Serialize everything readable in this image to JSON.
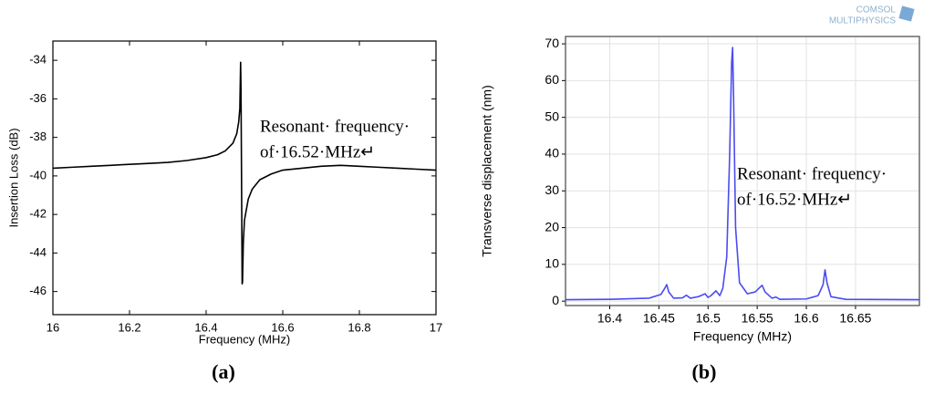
{
  "chart_data": [
    {
      "type": "line",
      "caption": "(a)",
      "x_label": "Frequency (MHz)",
      "y_label": "Insertion Loss (dB)",
      "annotation": [
        "Resonant· frequency·",
        "of·16.52·MHz↵"
      ],
      "x": [
        16,
        16.05,
        16.1,
        16.15,
        16.2,
        16.25,
        16.3,
        16.35,
        16.4,
        16.43,
        16.45,
        16.47,
        16.48,
        16.485,
        16.488,
        16.49,
        16.491,
        16.493,
        16.494,
        16.495,
        16.497,
        16.5,
        16.51,
        16.52,
        16.54,
        16.57,
        16.6,
        16.65,
        16.7,
        16.75,
        16.8,
        16.85,
        16.9,
        16.95,
        17
      ],
      "values": [
        -39.6,
        -39.55,
        -39.5,
        -39.45,
        -39.4,
        -39.35,
        -39.3,
        -39.2,
        -39.05,
        -38.9,
        -38.7,
        -38.3,
        -37.8,
        -37.2,
        -36.5,
        -34.1,
        -35.5,
        -42,
        -45.6,
        -45.5,
        -43.5,
        -42.3,
        -41.2,
        -40.7,
        -40.2,
        -39.9,
        -39.7,
        -39.6,
        -39.5,
        -39.45,
        -39.5,
        -39.55,
        -39.6,
        -39.65,
        -39.7
      ],
      "color": "#000000",
      "xlim": [
        16,
        17
      ],
      "xticks": [
        16,
        16.2,
        16.4,
        16.6,
        16.8,
        17
      ],
      "ylim": [
        -47.2,
        -33
      ],
      "yticks": [
        -34,
        -36,
        -38,
        -40,
        -42,
        -44,
        -46
      ],
      "grid": false
    },
    {
      "type": "line",
      "caption": "(b)",
      "x_label": "Frequency (MHz)",
      "y_label": "Transverse displacement (nm)",
      "annotation": [
        "Resonant· frequency·",
        "of·16.52·MHz↵"
      ],
      "x": [
        16.355,
        16.4,
        16.44,
        16.452,
        16.456,
        16.458,
        16.46,
        16.465,
        16.474,
        16.478,
        16.482,
        16.49,
        16.497,
        16.5,
        16.503,
        16.508,
        16.512,
        16.515,
        16.519,
        16.522,
        16.524,
        16.525,
        16.526,
        16.528,
        16.532,
        16.54,
        16.548,
        16.553,
        16.555,
        16.558,
        16.565,
        16.569,
        16.573,
        16.6,
        16.612,
        16.617,
        16.619,
        16.621,
        16.625,
        16.64,
        16.715
      ],
      "values": [
        0.4,
        0.5,
        0.8,
        1.8,
        3.5,
        4.5,
        2.5,
        0.8,
        0.9,
        1.6,
        0.8,
        1.2,
        2.0,
        1.0,
        1.5,
        2.8,
        1.5,
        3.5,
        12,
        40,
        65,
        69,
        55,
        20,
        5,
        2,
        2.5,
        3.8,
        4.3,
        2.5,
        0.8,
        1.1,
        0.5,
        0.6,
        1.5,
        4.5,
        8.5,
        5,
        1.2,
        0.5,
        0.4
      ],
      "color": "#4b4bf2",
      "xlim": [
        16.355,
        16.715
      ],
      "xticks": [
        16.4,
        16.45,
        16.5,
        16.55,
        16.6,
        16.65
      ],
      "ylim": [
        -1.2,
        72
      ],
      "yticks": [
        0,
        10,
        20,
        30,
        40,
        50,
        60,
        70
      ],
      "grid": true
    }
  ],
  "logo": [
    "COMSOL",
    "MULTIPHYSICS"
  ]
}
